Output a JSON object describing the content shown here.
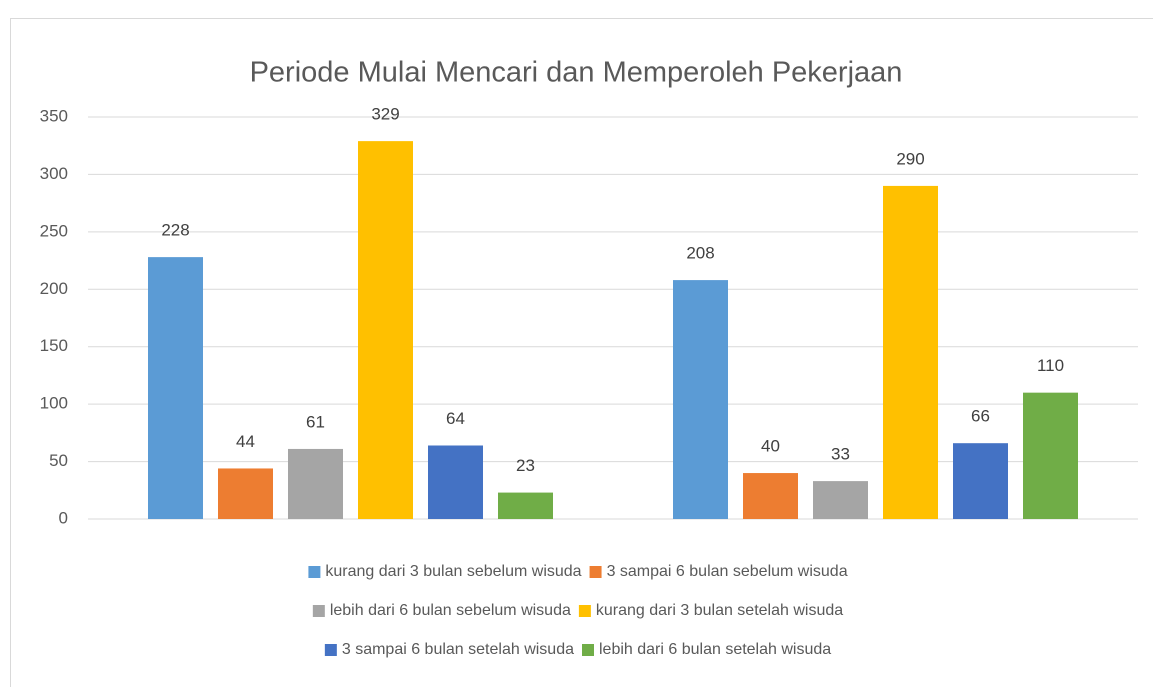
{
  "chart_data": {
    "type": "bar",
    "title": "Periode Mulai Mencari dan Memperoleh Pekerjaan",
    "categories": [
      null,
      null
    ],
    "series": [
      {
        "name": "kurang dari 3 bulan sebelum wisuda",
        "color": "#5b9bd5",
        "values": [
          228,
          208
        ]
      },
      {
        "name": "3 sampai 6 bulan sebelum wisuda",
        "color": "#ed7d31",
        "values": [
          44,
          40
        ]
      },
      {
        "name": "lebih dari 6 bulan sebelum wisuda",
        "color": "#a5a5a5",
        "values": [
          61,
          33
        ]
      },
      {
        "name": "kurang dari 3 bulan setelah wisuda",
        "color": "#ffc000",
        "values": [
          329,
          290
        ]
      },
      {
        "name": "3 sampai 6 bulan setelah wisuda",
        "color": "#4472c4",
        "values": [
          64,
          66
        ]
      },
      {
        "name": "lebih dari 6 bulan setelah wisuda",
        "color": "#70ad47",
        "values": [
          23,
          110
        ]
      }
    ],
    "ylim": [
      0,
      350
    ],
    "yticks": [
      0,
      50,
      100,
      150,
      200,
      250,
      300,
      350
    ],
    "grid": true,
    "legend": "bottom"
  }
}
